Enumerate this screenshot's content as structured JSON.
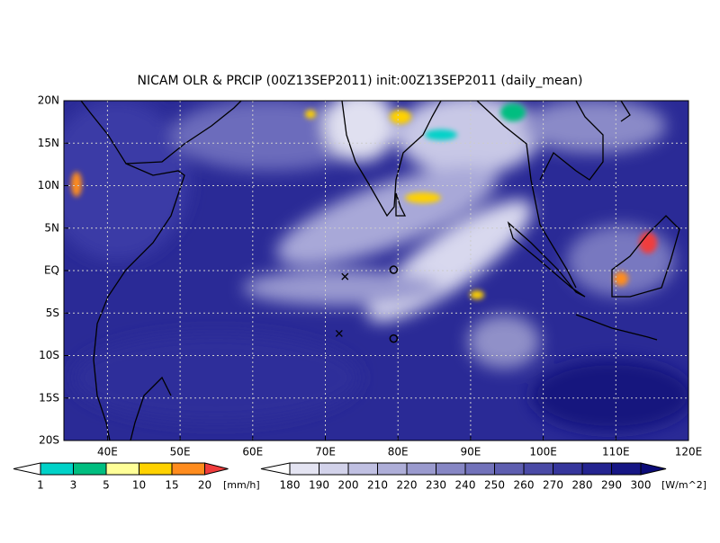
{
  "title": "NICAM OLR & PRCIP (00Z13SEP2011) init:00Z13SEP2011 (daily_mean)",
  "map": {
    "xlim": [
      34,
      120
    ],
    "ylim": [
      -20,
      20
    ],
    "xticks": [
      {
        "value": 40,
        "label": "40E"
      },
      {
        "value": 50,
        "label": "50E"
      },
      {
        "value": 60,
        "label": "60E"
      },
      {
        "value": 70,
        "label": "70E"
      },
      {
        "value": 80,
        "label": "80E"
      },
      {
        "value": 90,
        "label": "90E"
      },
      {
        "value": 100,
        "label": "100E"
      },
      {
        "value": 110,
        "label": "110E"
      },
      {
        "value": 120,
        "label": "120E"
      }
    ],
    "yticks": [
      {
        "value": 20,
        "label": "20N"
      },
      {
        "value": 15,
        "label": "15N"
      },
      {
        "value": 10,
        "label": "10N"
      },
      {
        "value": 5,
        "label": "5N"
      },
      {
        "value": 0,
        "label": "EQ"
      },
      {
        "value": -5,
        "label": "5S"
      },
      {
        "value": -10,
        "label": "10S"
      },
      {
        "value": -15,
        "label": "15S"
      },
      {
        "value": -20,
        "label": "20S"
      }
    ],
    "grid": true,
    "markers": [
      {
        "lon": 72.7,
        "lat": -0.7,
        "symbol": "x"
      },
      {
        "lon": 79.4,
        "lat": 0.1,
        "symbol": "o"
      },
      {
        "lon": 71.9,
        "lat": -7.4,
        "symbol": "x"
      },
      {
        "lon": 79.4,
        "lat": -8,
        "symbol": "o"
      }
    ]
  },
  "colorbars": [
    {
      "levels": [
        1,
        3,
        5,
        10,
        15,
        20
      ],
      "unit": "[mm/h]",
      "colors": [
        "#ffffff",
        "#00d2c8",
        "#00be80",
        "#ffff98",
        "#ffd200",
        "#ff8c1e",
        "#f03c3c"
      ]
    },
    {
      "levels": [
        180,
        190,
        200,
        210,
        220,
        230,
        240,
        250,
        260,
        270,
        280,
        290,
        300
      ],
      "unit": "[W/m^2]",
      "colors": [
        "#ffffff",
        "#e4e4f2",
        "#d2d2ea",
        "#c0c0e2",
        "#aeaed8",
        "#9a9ace",
        "#8686c4",
        "#7272ba",
        "#5e5eb0",
        "#4a4aa6",
        "#36369c",
        "#242490",
        "#161684",
        "#0c0c78"
      ]
    }
  ]
}
